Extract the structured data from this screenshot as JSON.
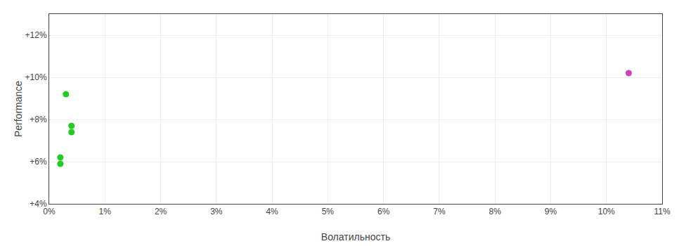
{
  "chart_data": {
    "type": "scatter",
    "xlabel": "Волатильность",
    "ylabel": "Performance",
    "series": [
      {
        "color": "#22cc22",
        "marker": "circle",
        "x": [
          0.003,
          0.004,
          0.004,
          0.002,
          0.002
        ],
        "values": [
          0.092,
          0.077,
          0.074,
          0.062,
          0.059
        ]
      },
      {
        "color": "#cc44bb",
        "marker": "circle",
        "x": [
          0.104
        ],
        "values": [
          0.102
        ]
      }
    ],
    "xlim": [
      0,
      0.11
    ],
    "ylim": [
      0.04,
      0.13
    ],
    "xticks": [
      {
        "value": 0.0,
        "label": "0%"
      },
      {
        "value": 0.01,
        "label": "1%"
      },
      {
        "value": 0.02,
        "label": "2%"
      },
      {
        "value": 0.03,
        "label": "3%"
      },
      {
        "value": 0.04,
        "label": "4%"
      },
      {
        "value": 0.05,
        "label": "5%"
      },
      {
        "value": 0.06,
        "label": "6%"
      },
      {
        "value": 0.07,
        "label": "7%"
      },
      {
        "value": 0.08,
        "label": "8%"
      },
      {
        "value": 0.09,
        "label": "9%"
      },
      {
        "value": 0.1,
        "label": "10%"
      },
      {
        "value": 0.11,
        "label": "11%"
      }
    ],
    "yticks": [
      {
        "value": 0.04,
        "label": "+4%"
      },
      {
        "value": 0.06,
        "label": "+6%"
      },
      {
        "value": 0.08,
        "label": "+8%"
      },
      {
        "value": 0.1,
        "label": "+10%"
      },
      {
        "value": 0.12,
        "label": "+12%"
      }
    ],
    "grid": true
  }
}
